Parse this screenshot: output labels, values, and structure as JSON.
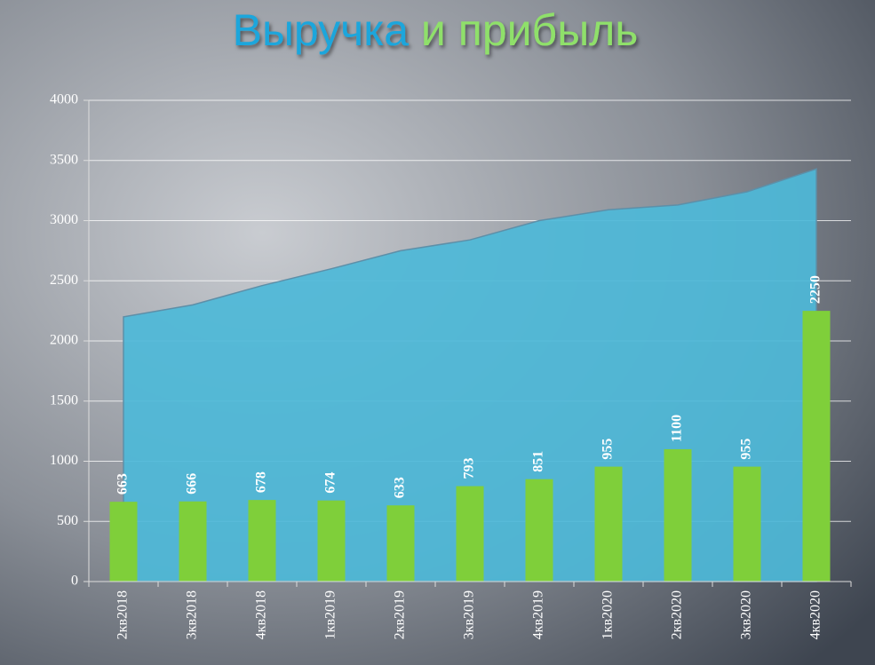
{
  "chart_data": {
    "type": "combo",
    "title": [
      "Выручка",
      "и прибыль"
    ],
    "title_colors": [
      "#1aa6dc",
      "#8fe06a"
    ],
    "categories": [
      "2кв2018",
      "3кв2018",
      "4кв2018",
      "1кв2019",
      "2кв2019",
      "3кв2019",
      "4кв2019",
      "1кв2020",
      "2кв2020",
      "3кв2020",
      "4кв2020"
    ],
    "series": [
      {
        "type": "area",
        "color": "#4db9d8",
        "values": [
          2200,
          2300,
          2460,
          2600,
          2750,
          2840,
          3000,
          3090,
          3130,
          3240,
          3430
        ]
      },
      {
        "type": "bar",
        "color": "#7fcf3a",
        "values": [
          663,
          666,
          678,
          674,
          633,
          793,
          851,
          955,
          1100,
          955,
          2250
        ],
        "data_labels": true
      }
    ],
    "ylim": [
      0,
      4000
    ],
    "yticks": [
      0,
      500,
      1000,
      1500,
      2000,
      2500,
      3000,
      3500,
      4000
    ],
    "grid": true
  }
}
